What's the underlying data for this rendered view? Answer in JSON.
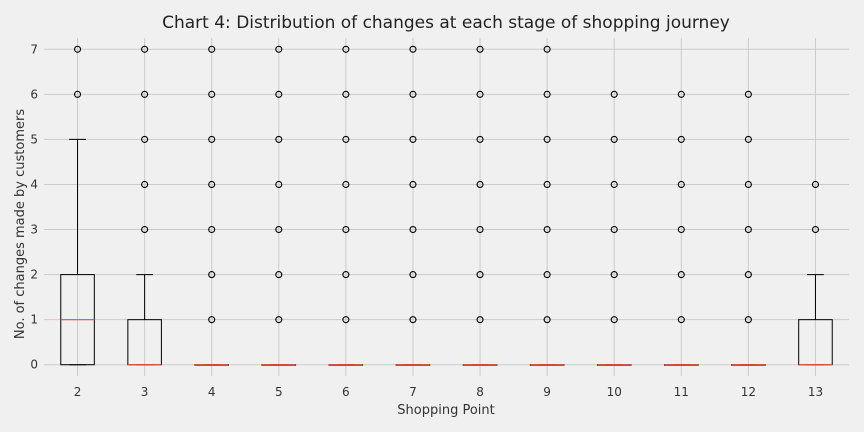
{
  "chart_data": {
    "type": "box",
    "title": "Chart 4: Distribution of changes at each stage of shopping journey",
    "xlabel": "Shopping Point",
    "ylabel": "No. of changes made by customers",
    "ylim": [
      0,
      7
    ],
    "yticks": [
      0,
      1,
      2,
      3,
      4,
      5,
      6,
      7
    ],
    "grid": true,
    "categories": [
      "2",
      "3",
      "4",
      "5",
      "6",
      "7",
      "8",
      "9",
      "10",
      "11",
      "12",
      "13"
    ],
    "boxes": [
      {
        "category": "2",
        "q1": 0,
        "median": 1,
        "q3": 2,
        "whisker_low": 0,
        "whisker_high": 5,
        "outliers": [
          6,
          7
        ]
      },
      {
        "category": "3",
        "q1": 0,
        "median": 0,
        "q3": 1,
        "whisker_low": 0,
        "whisker_high": 2,
        "outliers": [
          3,
          4,
          5,
          6,
          7
        ]
      },
      {
        "category": "4",
        "q1": 0,
        "median": 0,
        "q3": 0,
        "whisker_low": 0,
        "whisker_high": 0,
        "outliers": [
          1,
          2,
          3,
          4,
          5,
          6,
          7
        ]
      },
      {
        "category": "5",
        "q1": 0,
        "median": 0,
        "q3": 0,
        "whisker_low": 0,
        "whisker_high": 0,
        "outliers": [
          1,
          2,
          3,
          4,
          5,
          6,
          7
        ]
      },
      {
        "category": "6",
        "q1": 0,
        "median": 0,
        "q3": 0,
        "whisker_low": 0,
        "whisker_high": 0,
        "outliers": [
          1,
          2,
          3,
          4,
          5,
          6,
          7
        ]
      },
      {
        "category": "7",
        "q1": 0,
        "median": 0,
        "q3": 0,
        "whisker_low": 0,
        "whisker_high": 0,
        "outliers": [
          1,
          2,
          3,
          4,
          5,
          6,
          7
        ]
      },
      {
        "category": "8",
        "q1": 0,
        "median": 0,
        "q3": 0,
        "whisker_low": 0,
        "whisker_high": 0,
        "outliers": [
          1,
          2,
          3,
          4,
          5,
          6,
          7
        ]
      },
      {
        "category": "9",
        "q1": 0,
        "median": 0,
        "q3": 0,
        "whisker_low": 0,
        "whisker_high": 0,
        "outliers": [
          1,
          2,
          3,
          4,
          5,
          6,
          7
        ]
      },
      {
        "category": "10",
        "q1": 0,
        "median": 0,
        "q3": 0,
        "whisker_low": 0,
        "whisker_high": 0,
        "outliers": [
          1,
          2,
          3,
          4,
          5,
          6
        ]
      },
      {
        "category": "11",
        "q1": 0,
        "median": 0,
        "q3": 0,
        "whisker_low": 0,
        "whisker_high": 0,
        "outliers": [
          1,
          2,
          3,
          4,
          5,
          6
        ]
      },
      {
        "category": "12",
        "q1": 0,
        "median": 0,
        "q3": 0,
        "whisker_low": 0,
        "whisker_high": 0,
        "outliers": [
          1,
          2,
          3,
          4,
          5,
          6
        ]
      },
      {
        "category": "13",
        "q1": 0,
        "median": 0,
        "q3": 1,
        "whisker_low": 0,
        "whisker_high": 2,
        "outliers": [
          3,
          4
        ]
      }
    ],
    "colors": {
      "background": "#f0f0f0",
      "grid": "#cbcbcb",
      "box": "#000000",
      "median": "#e5553b"
    }
  }
}
